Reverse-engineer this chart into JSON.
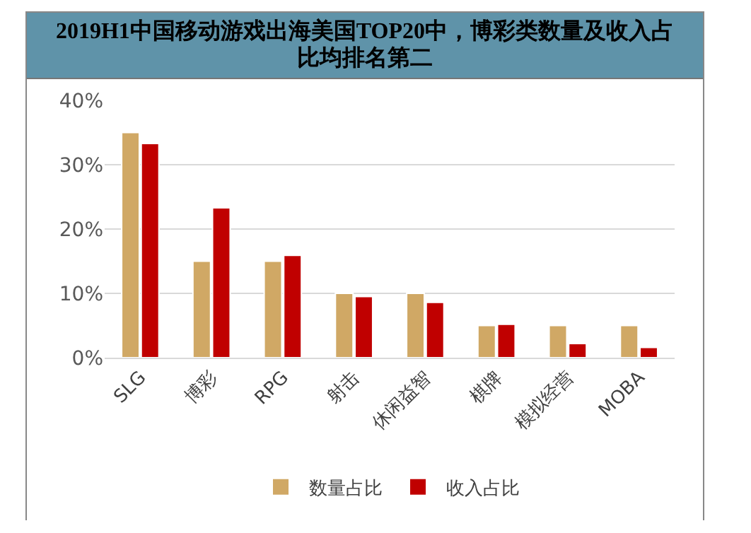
{
  "chart_data": {
    "type": "bar",
    "title": "2019H1中国移动游戏出海美国TOP20中，博彩类数量及收入占比均排名第二",
    "categories": [
      "SLG",
      "博彩",
      "RPG",
      "射击",
      "休闲益智",
      "棋牌",
      "模拟经营",
      "MOBA"
    ],
    "series": [
      {
        "name": "数量占比",
        "color": "#d0a865",
        "values": [
          35,
          15,
          15,
          10,
          10,
          5,
          5,
          5
        ]
      },
      {
        "name": "收入占比",
        "color": "#c00000",
        "values": [
          33.3,
          23.3,
          15.9,
          9.5,
          8.6,
          5.2,
          2.2,
          1.6
        ]
      }
    ],
    "ylim": [
      0,
      40
    ],
    "yticks": [
      {
        "value": 0,
        "label": "0%"
      },
      {
        "value": 10,
        "label": "10%"
      },
      {
        "value": 20,
        "label": "20%"
      },
      {
        "value": 30,
        "label": "30%"
      },
      {
        "value": 40,
        "label": "40%"
      }
    ],
    "grid": "y",
    "legend": "bottom"
  }
}
